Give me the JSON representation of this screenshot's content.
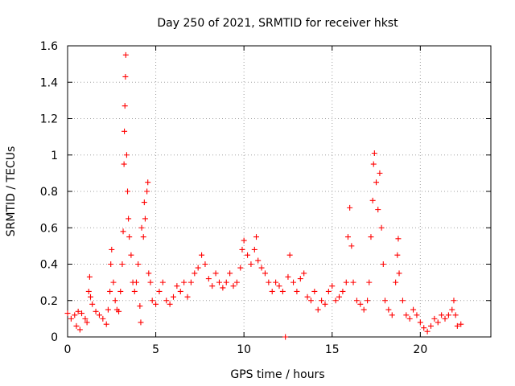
{
  "chart_data": {
    "type": "scatter",
    "title": "Day 250 of 2021, SRMTID for receiver hkst",
    "xlabel": "GPS time / hours",
    "ylabel": "SRMTID / TECUs",
    "xlim": [
      0,
      24
    ],
    "ylim": [
      0,
      1.6
    ],
    "xticks": [
      0,
      5,
      10,
      15,
      20
    ],
    "xtick_labels": [
      "0",
      "5",
      "10",
      "15",
      "20"
    ],
    "yticks": [
      0,
      0.2,
      0.4,
      0.6,
      0.8,
      1.0,
      1.2,
      1.4,
      1.6
    ],
    "ytick_labels": [
      "0",
      "0.2",
      "0.4",
      "0.6",
      "0.8",
      "1",
      "1.2",
      "1.4",
      "1.6"
    ],
    "grid": true,
    "marker": "plus",
    "series": [
      {
        "name": "SRMTID",
        "color": "#ff0000",
        "points": [
          [
            0.0,
            0.13
          ],
          [
            0.2,
            0.1
          ],
          [
            0.4,
            0.12
          ],
          [
            0.5,
            0.06
          ],
          [
            0.6,
            0.14
          ],
          [
            0.7,
            0.04
          ],
          [
            0.8,
            0.13
          ],
          [
            1.0,
            0.1
          ],
          [
            1.1,
            0.08
          ],
          [
            1.2,
            0.25
          ],
          [
            1.25,
            0.33
          ],
          [
            1.3,
            0.22
          ],
          [
            1.4,
            0.18
          ],
          [
            1.6,
            0.14
          ],
          [
            1.8,
            0.12
          ],
          [
            2.0,
            0.1
          ],
          [
            2.2,
            0.07
          ],
          [
            2.3,
            0.15
          ],
          [
            2.4,
            0.25
          ],
          [
            2.45,
            0.4
          ],
          [
            2.5,
            0.48
          ],
          [
            2.6,
            0.3
          ],
          [
            2.7,
            0.2
          ],
          [
            2.8,
            0.15
          ],
          [
            2.9,
            0.14
          ],
          [
            3.0,
            0.25
          ],
          [
            3.1,
            0.4
          ],
          [
            3.15,
            0.58
          ],
          [
            3.2,
            0.95
          ],
          [
            3.22,
            1.13
          ],
          [
            3.25,
            1.27
          ],
          [
            3.28,
            1.43
          ],
          [
            3.3,
            1.55
          ],
          [
            3.35,
            1.0
          ],
          [
            3.4,
            0.8
          ],
          [
            3.45,
            0.65
          ],
          [
            3.5,
            0.55
          ],
          [
            3.6,
            0.45
          ],
          [
            3.7,
            0.3
          ],
          [
            3.8,
            0.25
          ],
          [
            3.9,
            0.3
          ],
          [
            4.0,
            0.4
          ],
          [
            4.1,
            0.17
          ],
          [
            4.15,
            0.08
          ],
          [
            4.2,
            0.6
          ],
          [
            4.3,
            0.55
          ],
          [
            4.35,
            0.74
          ],
          [
            4.4,
            0.65
          ],
          [
            4.5,
            0.8
          ],
          [
            4.55,
            0.85
          ],
          [
            4.6,
            0.35
          ],
          [
            4.7,
            0.3
          ],
          [
            4.8,
            0.2
          ],
          [
            5.0,
            0.18
          ],
          [
            5.2,
            0.25
          ],
          [
            5.4,
            0.3
          ],
          [
            5.6,
            0.2
          ],
          [
            5.8,
            0.18
          ],
          [
            6.0,
            0.22
          ],
          [
            6.2,
            0.28
          ],
          [
            6.4,
            0.25
          ],
          [
            6.6,
            0.3
          ],
          [
            6.8,
            0.22
          ],
          [
            7.0,
            0.3
          ],
          [
            7.2,
            0.35
          ],
          [
            7.4,
            0.38
          ],
          [
            7.6,
            0.45
          ],
          [
            7.8,
            0.4
          ],
          [
            8.0,
            0.32
          ],
          [
            8.2,
            0.28
          ],
          [
            8.4,
            0.35
          ],
          [
            8.6,
            0.3
          ],
          [
            8.8,
            0.27
          ],
          [
            9.0,
            0.3
          ],
          [
            9.2,
            0.35
          ],
          [
            9.4,
            0.28
          ],
          [
            9.6,
            0.3
          ],
          [
            9.8,
            0.38
          ],
          [
            9.9,
            0.48
          ],
          [
            10.0,
            0.53
          ],
          [
            10.2,
            0.45
          ],
          [
            10.4,
            0.4
          ],
          [
            10.6,
            0.48
          ],
          [
            10.7,
            0.55
          ],
          [
            10.8,
            0.42
          ],
          [
            11.0,
            0.38
          ],
          [
            11.2,
            0.35
          ],
          [
            11.4,
            0.3
          ],
          [
            11.6,
            0.25
          ],
          [
            11.8,
            0.3
          ],
          [
            12.0,
            0.28
          ],
          [
            12.2,
            0.25
          ],
          [
            12.35,
            0.0
          ],
          [
            12.5,
            0.33
          ],
          [
            12.6,
            0.45
          ],
          [
            12.8,
            0.3
          ],
          [
            13.0,
            0.25
          ],
          [
            13.2,
            0.32
          ],
          [
            13.4,
            0.35
          ],
          [
            13.6,
            0.22
          ],
          [
            13.8,
            0.2
          ],
          [
            14.0,
            0.25
          ],
          [
            14.2,
            0.15
          ],
          [
            14.4,
            0.2
          ],
          [
            14.6,
            0.18
          ],
          [
            14.8,
            0.25
          ],
          [
            15.0,
            0.28
          ],
          [
            15.2,
            0.2
          ],
          [
            15.4,
            0.22
          ],
          [
            15.6,
            0.25
          ],
          [
            15.8,
            0.3
          ],
          [
            15.9,
            0.55
          ],
          [
            16.0,
            0.71
          ],
          [
            16.1,
            0.5
          ],
          [
            16.2,
            0.3
          ],
          [
            16.4,
            0.2
          ],
          [
            16.6,
            0.18
          ],
          [
            16.8,
            0.15
          ],
          [
            17.0,
            0.2
          ],
          [
            17.1,
            0.3
          ],
          [
            17.2,
            0.55
          ],
          [
            17.3,
            0.75
          ],
          [
            17.35,
            0.95
          ],
          [
            17.4,
            1.01
          ],
          [
            17.5,
            0.85
          ],
          [
            17.6,
            0.7
          ],
          [
            17.7,
            0.9
          ],
          [
            17.8,
            0.6
          ],
          [
            17.9,
            0.4
          ],
          [
            18.0,
            0.2
          ],
          [
            18.2,
            0.15
          ],
          [
            18.4,
            0.12
          ],
          [
            18.6,
            0.3
          ],
          [
            18.7,
            0.45
          ],
          [
            18.75,
            0.54
          ],
          [
            18.8,
            0.35
          ],
          [
            19.0,
            0.2
          ],
          [
            19.2,
            0.12
          ],
          [
            19.4,
            0.1
          ],
          [
            19.6,
            0.15
          ],
          [
            19.8,
            0.12
          ],
          [
            20.0,
            0.08
          ],
          [
            20.2,
            0.05
          ],
          [
            20.4,
            0.03
          ],
          [
            20.6,
            0.06
          ],
          [
            20.8,
            0.1
          ],
          [
            21.0,
            0.08
          ],
          [
            21.2,
            0.12
          ],
          [
            21.4,
            0.1
          ],
          [
            21.6,
            0.12
          ],
          [
            21.8,
            0.15
          ],
          [
            21.9,
            0.2
          ],
          [
            22.0,
            0.12
          ],
          [
            22.1,
            0.06
          ],
          [
            22.3,
            0.07
          ]
        ]
      }
    ]
  }
}
